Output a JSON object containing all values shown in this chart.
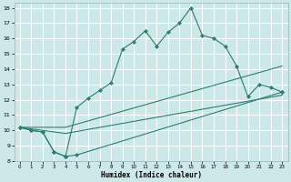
{
  "xlabel": "Humidex (Indice chaleur)",
  "xlim": [
    -0.5,
    23.5
  ],
  "ylim": [
    8,
    18.3
  ],
  "yticks": [
    8,
    9,
    10,
    11,
    12,
    13,
    14,
    15,
    16,
    17,
    18
  ],
  "xticks": [
    0,
    1,
    2,
    3,
    4,
    5,
    6,
    7,
    8,
    9,
    10,
    11,
    12,
    13,
    14,
    15,
    16,
    17,
    18,
    19,
    20,
    21,
    22,
    23
  ],
  "background_color": "#cce8e8",
  "grid_color": "#ffffff",
  "line_color": "#2e7d6e",
  "line1": {
    "x": [
      0,
      1,
      2,
      3,
      4,
      5,
      6,
      7,
      8,
      9,
      10,
      11,
      12,
      13,
      14,
      15,
      16,
      17,
      18,
      19,
      20,
      21,
      22,
      23
    ],
    "y": [
      10.2,
      10.0,
      9.9,
      8.6,
      8.3,
      11.5,
      12.1,
      12.6,
      13.1,
      15.3,
      15.8,
      16.5,
      15.5,
      16.4,
      17.0,
      18.0,
      16.2,
      16.0,
      15.5,
      14.2,
      12.2,
      13.0,
      12.8,
      12.5
    ]
  },
  "line2": {
    "x": [
      0,
      1,
      2,
      3,
      4,
      4,
      5,
      23
    ],
    "y": [
      10.2,
      10.0,
      9.9,
      8.6,
      8.3,
      8.3,
      8.4,
      12.5
    ]
  },
  "line3": {
    "x": [
      0,
      4,
      23
    ],
    "y": [
      10.2,
      10.2,
      14.2
    ]
  },
  "line4": {
    "x": [
      0,
      4,
      23
    ],
    "y": [
      10.2,
      9.8,
      12.3
    ]
  }
}
